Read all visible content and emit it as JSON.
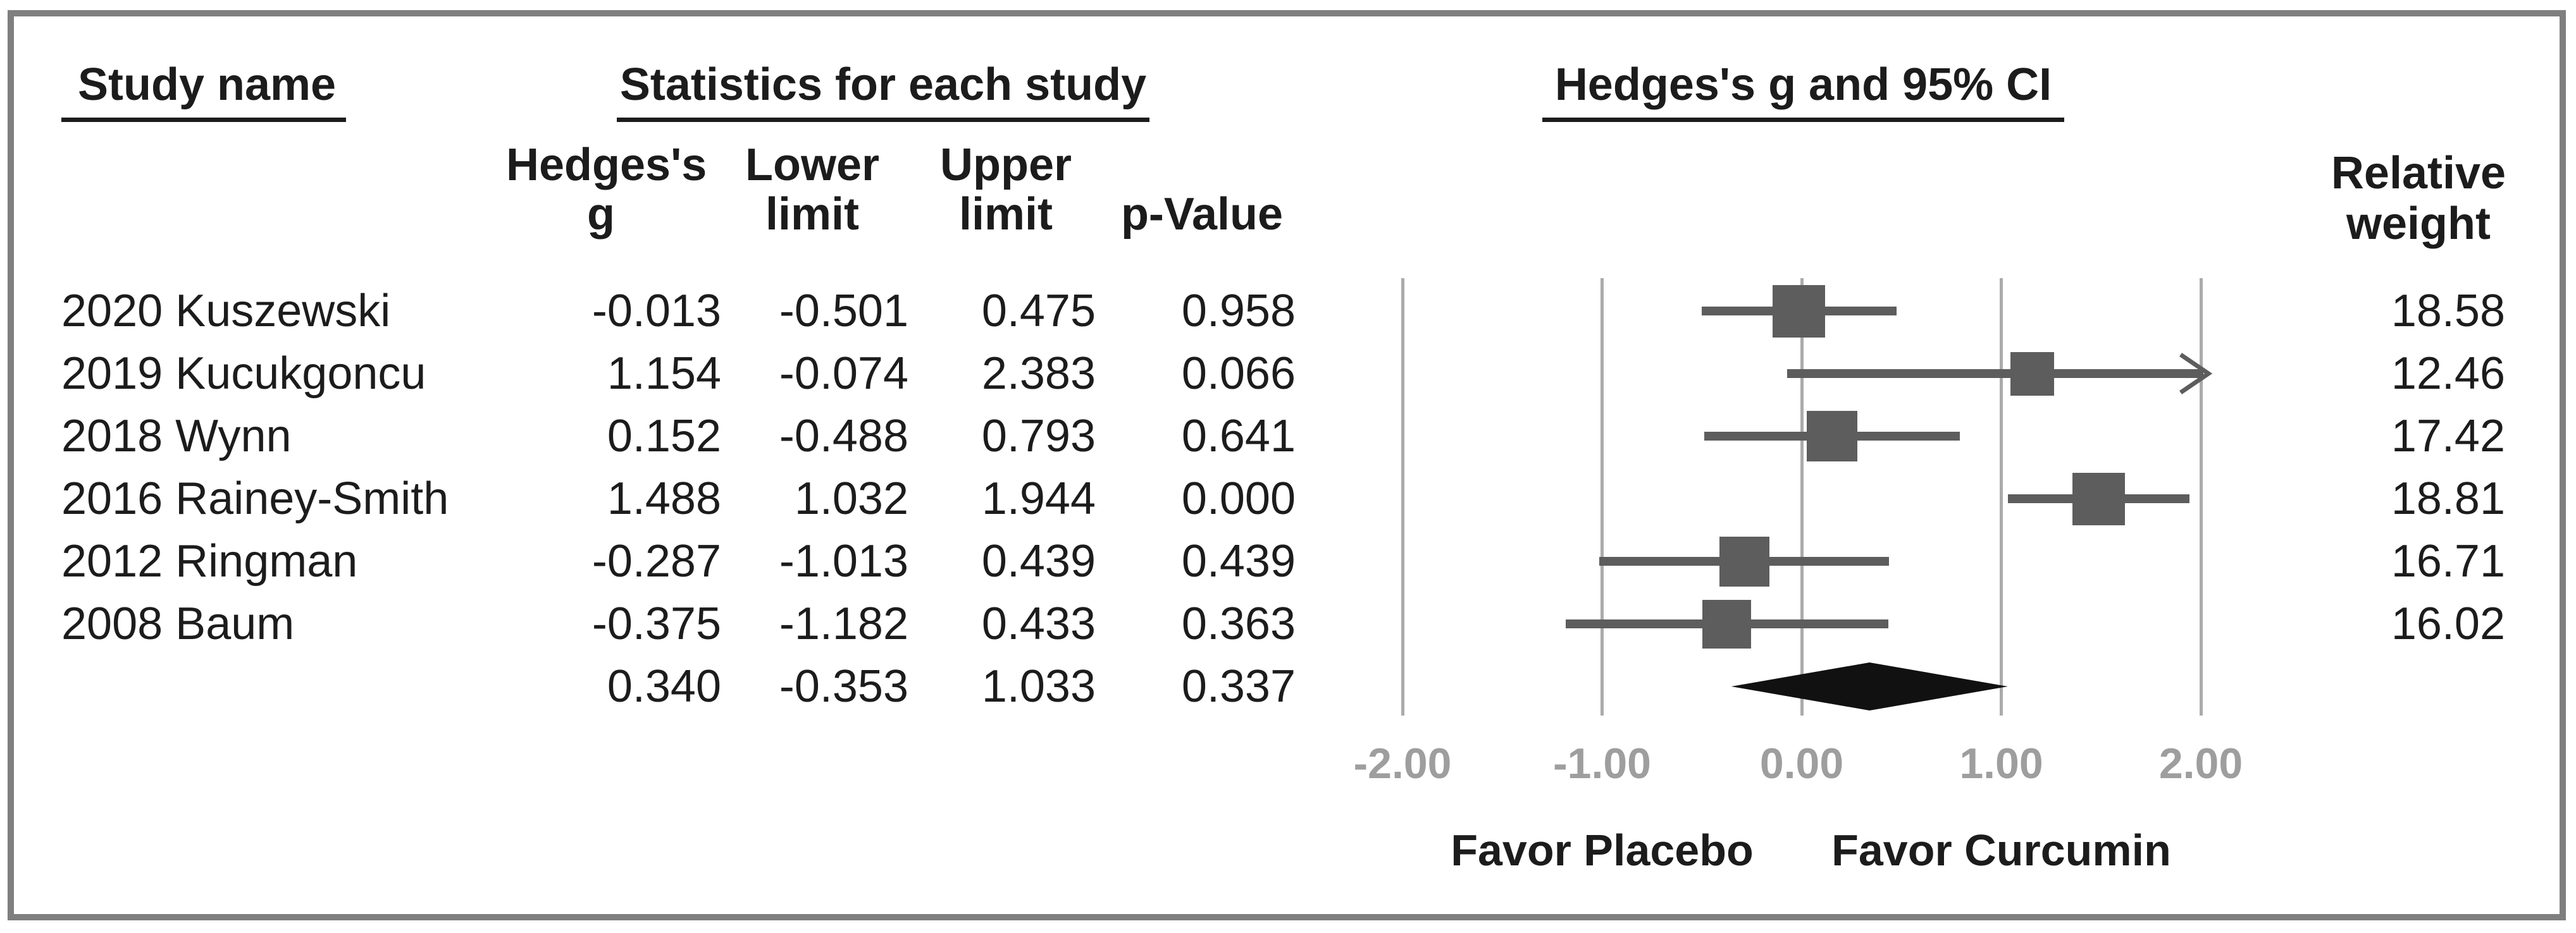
{
  "figure": {
    "headers": {
      "study_name": "Study name",
      "statistics": "Statistics for each study",
      "effect": "Hedges's g and 95% CI",
      "col_hedges_line1": "Hedges's",
      "col_hedges_line2": "g",
      "col_lower_line1": "Lower",
      "col_lower_line2": "limit",
      "col_upper_line1": "Upper",
      "col_upper_line2": "limit",
      "col_p": "p-Value",
      "col_weight_line1": "Relative",
      "col_weight_line2": "weight"
    }
  },
  "chart_data": {
    "type": "forest",
    "effect_measure": "Hedges's g",
    "title": "Hedges's g and 95% CI",
    "xlim": [
      -2,
      2
    ],
    "x_ticks": [
      {
        "value": -2,
        "label": "-2.00"
      },
      {
        "value": -1,
        "label": "-1.00"
      },
      {
        "value": 0,
        "label": "0.00"
      },
      {
        "value": 1,
        "label": "1.00"
      },
      {
        "value": 2,
        "label": "2.00"
      }
    ],
    "studies": [
      {
        "name": "2020 Kuszewski",
        "hedges_g": "-0.013",
        "lower_limit": "-0.501",
        "upper_limit": "0.475",
        "p_value": "0.958",
        "relative_weight": "18.58"
      },
      {
        "name": "2019 Kucukgoncu",
        "hedges_g": "1.154",
        "lower_limit": "-0.074",
        "upper_limit": "2.383",
        "p_value": "0.066",
        "relative_weight": "12.46"
      },
      {
        "name": "2018 Wynn",
        "hedges_g": "0.152",
        "lower_limit": "-0.488",
        "upper_limit": "0.793",
        "p_value": "0.641",
        "relative_weight": "17.42"
      },
      {
        "name": "2016 Rainey-Smith",
        "hedges_g": "1.488",
        "lower_limit": "1.032",
        "upper_limit": "1.944",
        "p_value": "0.000",
        "relative_weight": "18.81"
      },
      {
        "name": "2012 Ringman",
        "hedges_g": "-0.287",
        "lower_limit": "-1.013",
        "upper_limit": "0.439",
        "p_value": "0.439",
        "relative_weight": "16.71"
      },
      {
        "name": "2008 Baum",
        "hedges_g": "-0.375",
        "lower_limit": "-1.182",
        "upper_limit": "0.433",
        "p_value": "0.363",
        "relative_weight": "16.02"
      }
    ],
    "summary": {
      "hedges_g": "0.340",
      "lower_limit": "-0.353",
      "upper_limit": "1.033",
      "p_value": "0.337"
    },
    "footer_left": "Favor Placebo",
    "footer_right": "Favor Curcumin",
    "colors": {
      "square": "#5d5d5d",
      "ci_line": "#5d5d5d",
      "gridline": "#ababab",
      "tick_label": "#9e9e9e",
      "diamond": "#111111",
      "frame_border": "#7f7f7f",
      "text": "#1c1c1c"
    }
  }
}
